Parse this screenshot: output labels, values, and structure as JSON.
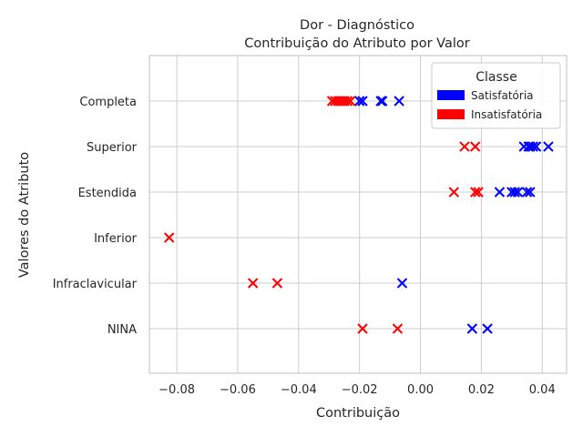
{
  "chart_data": {
    "type": "scatter",
    "title": "Dor - Diagnóstico",
    "subtitle": "Contribuição do Atributo por Valor",
    "xlabel": "Contribuição",
    "ylabel": "Valores do Atributo",
    "xlim": [
      -0.089,
      0.048
    ],
    "x_ticks": [
      -0.08,
      -0.06,
      -0.04,
      -0.02,
      0.0,
      0.02,
      0.04
    ],
    "x_tick_labels": [
      "−0.08",
      "−0.06",
      "−0.04",
      "−0.02",
      "0.00",
      "0.02",
      "0.04"
    ],
    "categories": [
      "Completa",
      "Superior",
      "Estendida",
      "Inferior",
      "Infraclavicular",
      "NINA"
    ],
    "grid": true,
    "marker": "x",
    "legend": {
      "title": "Classe",
      "placement": "top-right",
      "entries": [
        {
          "name": "Satisfatória",
          "color": "#0000ff"
        },
        {
          "name": "Insatisfatória",
          "color": "#ff0000"
        }
      ]
    },
    "series": [
      {
        "name": "Satisfatória",
        "color": "#0000ff",
        "points": [
          {
            "category": "Completa",
            "x": -0.02
          },
          {
            "category": "Completa",
            "x": -0.019
          },
          {
            "category": "Completa",
            "x": -0.013
          },
          {
            "category": "Completa",
            "x": -0.0125
          },
          {
            "category": "Completa",
            "x": -0.007
          },
          {
            "category": "Superior",
            "x": 0.034
          },
          {
            "category": "Superior",
            "x": 0.0355
          },
          {
            "category": "Superior",
            "x": 0.036
          },
          {
            "category": "Superior",
            "x": 0.037
          },
          {
            "category": "Superior",
            "x": 0.038
          },
          {
            "category": "Superior",
            "x": 0.042
          },
          {
            "category": "Estendida",
            "x": 0.026
          },
          {
            "category": "Estendida",
            "x": 0.03
          },
          {
            "category": "Estendida",
            "x": 0.031
          },
          {
            "category": "Estendida",
            "x": 0.032
          },
          {
            "category": "Estendida",
            "x": 0.035
          },
          {
            "category": "Estendida",
            "x": 0.036
          },
          {
            "category": "Infraclavicular",
            "x": -0.006
          },
          {
            "category": "NINA",
            "x": 0.017
          },
          {
            "category": "NINA",
            "x": 0.022
          }
        ]
      },
      {
        "name": "Insatisfatória",
        "color": "#ff0000",
        "points": [
          {
            "category": "Completa",
            "x": -0.029
          },
          {
            "category": "Completa",
            "x": -0.028
          },
          {
            "category": "Completa",
            "x": -0.027
          },
          {
            "category": "Completa",
            "x": -0.026
          },
          {
            "category": "Completa",
            "x": -0.025
          },
          {
            "category": "Completa",
            "x": -0.024
          },
          {
            "category": "Completa",
            "x": -0.023
          },
          {
            "category": "Superior",
            "x": 0.0145
          },
          {
            "category": "Superior",
            "x": 0.018
          },
          {
            "category": "Estendida",
            "x": 0.011
          },
          {
            "category": "Estendida",
            "x": 0.018
          },
          {
            "category": "Estendida",
            "x": 0.019
          },
          {
            "category": "Inferior",
            "x": -0.0825
          },
          {
            "category": "Infraclavicular",
            "x": -0.055
          },
          {
            "category": "Infraclavicular",
            "x": -0.047
          },
          {
            "category": "NINA",
            "x": -0.019
          },
          {
            "category": "NINA",
            "x": -0.0075
          }
        ]
      }
    ]
  }
}
